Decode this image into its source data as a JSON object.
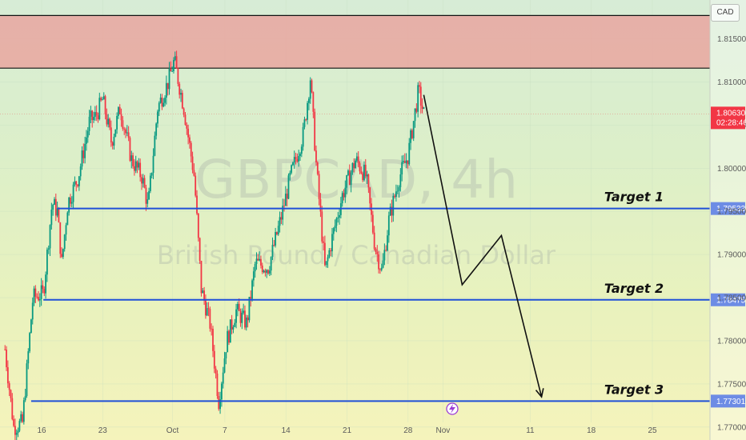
{
  "currency_badge": "CAD",
  "watermark": {
    "symbol": "GBPCAD, 4h",
    "name": "British Pound / Canadian Dollar"
  },
  "colors": {
    "up": "#089981",
    "down": "#f23645",
    "target_line": "#1f4fd8",
    "resistance_zone": "#e9a6a0",
    "arrow": "#111111"
  },
  "chart_data": {
    "type": "candlestick",
    "symbol": "GBPCAD",
    "interval": "4h",
    "ylim": [
      1.7685,
      1.8195
    ],
    "y_ticks": [
      "1.77000",
      "1.77500",
      "1.78000",
      "1.78500",
      "1.79000",
      "1.79500",
      "1.80000",
      "1.80500",
      "1.81000",
      "1.81500"
    ],
    "x_ticks": [
      {
        "label": "16",
        "day": 0
      },
      {
        "label": "23",
        "day": 7
      },
      {
        "label": "Oct",
        "day": 15
      },
      {
        "label": "7",
        "day": 21
      },
      {
        "label": "14",
        "day": 28
      },
      {
        "label": "21",
        "day": 35
      },
      {
        "label": "28",
        "day": 42
      },
      {
        "label": "Nov",
        "day": 46
      },
      {
        "label": "11",
        "day": 56
      },
      {
        "label": "18",
        "day": 63
      },
      {
        "label": "25",
        "day": 70
      }
    ],
    "current_price": {
      "value": "1.80630",
      "countdown": "02:28:46"
    },
    "resistance_zone": {
      "from": 1.8116,
      "to": 1.8177
    },
    "targets": [
      {
        "label": "Target 1",
        "price": "1.79533",
        "day_start": 1.8
      },
      {
        "label": "Target 2",
        "price": "1.78475",
        "day_start": 0.2
      },
      {
        "label": "Target 3",
        "price": "1.77301",
        "day_start": -1.2
      }
    ],
    "projection": [
      {
        "day": 43.8,
        "price": 1.8085
      },
      {
        "day": 48.2,
        "price": 1.7865
      },
      {
        "day": 52.7,
        "price": 1.7922
      },
      {
        "day": 57.3,
        "price": 1.7735
      }
    ],
    "path": [
      [
        -4.2,
        1.779
      ],
      [
        -3.2,
        1.77
      ],
      [
        -2.2,
        1.7705
      ],
      [
        -1.0,
        1.785
      ],
      [
        0.2,
        1.7855
      ],
      [
        1.2,
        1.796
      ],
      [
        1.8,
        1.795
      ],
      [
        2.3,
        1.789
      ],
      [
        3.0,
        1.796
      ],
      [
        4.2,
        1.799
      ],
      [
        5.5,
        1.8055
      ],
      [
        6.2,
        1.806
      ],
      [
        7.0,
        1.808
      ],
      [
        8.0,
        1.803
      ],
      [
        9.0,
        1.807
      ],
      [
        10.3,
        1.801
      ],
      [
        11.5,
        1.799
      ],
      [
        12.2,
        1.7955
      ],
      [
        13.3,
        1.807
      ],
      [
        14.5,
        1.81
      ],
      [
        15.2,
        1.8125
      ],
      [
        16.3,
        1.807
      ],
      [
        17.5,
        1.799
      ],
      [
        18.3,
        1.786
      ],
      [
        19.3,
        1.782
      ],
      [
        20.3,
        1.773
      ],
      [
        21.2,
        1.78
      ],
      [
        22.3,
        1.7835
      ],
      [
        23.5,
        1.782
      ],
      [
        24.5,
        1.789
      ],
      [
        26.0,
        1.7885
      ],
      [
        27.5,
        1.7945
      ],
      [
        28.5,
        1.799
      ],
      [
        30.0,
        1.804
      ],
      [
        30.8,
        1.8105
      ],
      [
        31.5,
        1.8
      ],
      [
        32.5,
        1.788
      ],
      [
        33.2,
        1.7915
      ],
      [
        34.5,
        1.797
      ],
      [
        36.0,
        1.801
      ],
      [
        37.2,
        1.799
      ],
      [
        38.2,
        1.791
      ],
      [
        39.0,
        1.788
      ],
      [
        39.8,
        1.794
      ],
      [
        41.0,
        1.799
      ],
      [
        42.0,
        1.8015
      ],
      [
        43.2,
        1.809
      ],
      [
        43.8,
        1.8063
      ]
    ]
  }
}
